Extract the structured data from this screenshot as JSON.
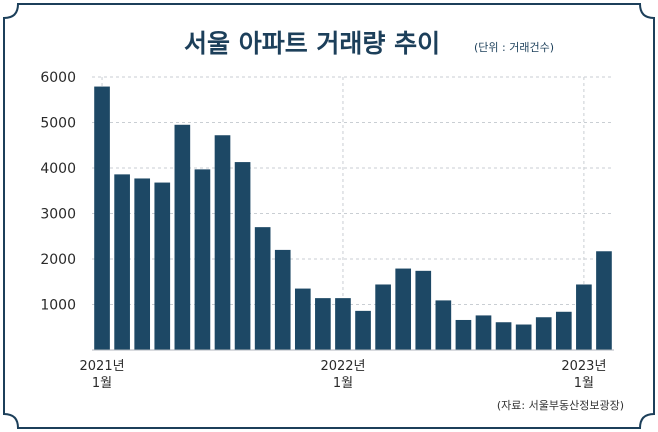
{
  "chart_data": {
    "type": "bar",
    "title": "서울 아파트 거래량 추이",
    "unit_note": "(단위 : 거래건수)",
    "source": "(자료: 서울부동산정보광장)",
    "xlabel": "",
    "ylabel": "",
    "ylim": [
      0,
      6000
    ],
    "yticks": [
      "6000",
      "5000",
      "4000",
      "3000",
      "2000",
      "1000"
    ],
    "ytick_values": [
      6000,
      5000,
      4000,
      3000,
      2000,
      1000
    ],
    "grid": true,
    "legend": "none",
    "categories": [
      "2021-01",
      "2021-02",
      "2021-03",
      "2021-04",
      "2021-05",
      "2021-06",
      "2021-07",
      "2021-08",
      "2021-09",
      "2021-10",
      "2021-11",
      "2021-12",
      "2022-01",
      "2022-02",
      "2022-03",
      "2022-04",
      "2022-05",
      "2022-06",
      "2022-07",
      "2022-08",
      "2022-09",
      "2022-10",
      "2022-11",
      "2022-12",
      "2023-01",
      "2023-02"
    ],
    "values": [
      5790,
      3860,
      3770,
      3680,
      4950,
      3970,
      4720,
      4130,
      2700,
      2200,
      1350,
      1140,
      1140,
      860,
      1440,
      1790,
      1740,
      1090,
      660,
      760,
      610,
      560,
      720,
      840,
      1440,
      2170
    ],
    "xtick_labels": [
      {
        "index": 0,
        "year": "2021년",
        "month": "1월"
      },
      {
        "index": 12,
        "year": "2022년",
        "month": "1월"
      },
      {
        "index": 24,
        "year": "2023년",
        "month": "1월"
      }
    ],
    "colors": {
      "bar": "#1d4865",
      "frame": "#1c3f5a",
      "grid": "#c9ced3",
      "axis_text": "#2a2a2a"
    }
  }
}
